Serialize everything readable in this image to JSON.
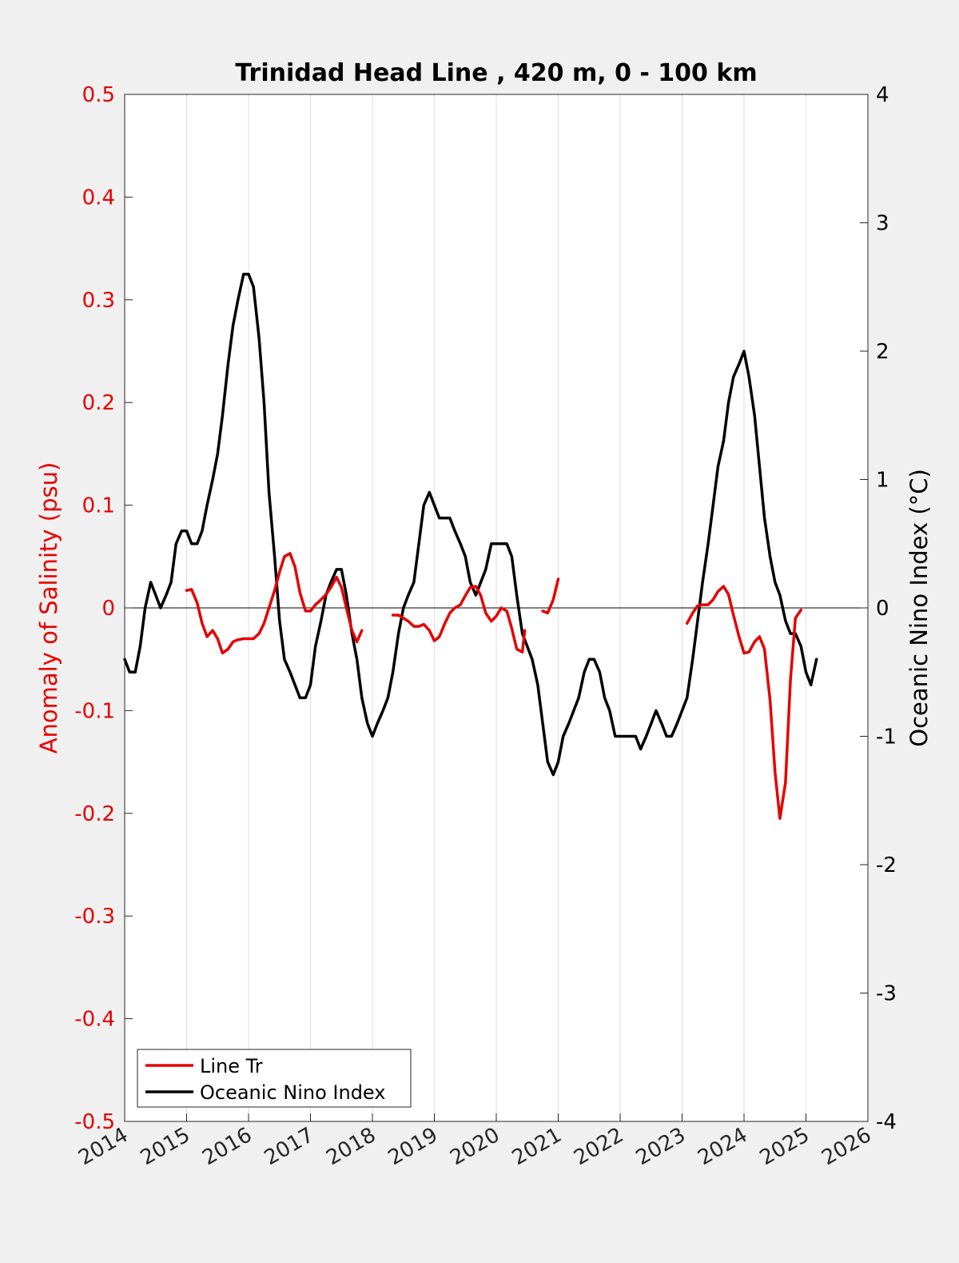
{
  "chart_data": {
    "type": "line",
    "title": "Trinidad Head Line , 420 m, 0 - 100 km",
    "xlabel": "",
    "ylabel_left": "Anomaly of Salinity (psu)",
    "ylabel_right": "Oceanic Nino Index (°C)",
    "xlim": [
      2014,
      2026
    ],
    "ylim_left": [
      -0.5,
      0.5
    ],
    "ylim_right": [
      -4,
      4
    ],
    "xticks": [
      "2014",
      "2015",
      "2016",
      "2017",
      "2018",
      "2019",
      "2020",
      "2021",
      "2022",
      "2023",
      "2024",
      "2025",
      "2026"
    ],
    "yticks_left": [
      "0.5",
      "0.4",
      "0.3",
      "0.2",
      "0.1",
      "0",
      "-0.1",
      "-0.2",
      "-0.3",
      "-0.4",
      "-0.5"
    ],
    "yticks_right": [
      "4",
      "3",
      "2",
      "1",
      "0",
      "-1",
      "-2",
      "-3",
      "-4"
    ],
    "grid": "vertical x-gridlines",
    "legend_position": "bottom-left",
    "colors": {
      "salinity": "#e60000",
      "oni": "#000000",
      "left_axis": "#e60000",
      "right_axis": "#000000"
    },
    "series": [
      {
        "name": "Line Tr",
        "axis": "left",
        "segments": [
          [
            [
              2015.0,
              0.017
            ],
            [
              2015.08,
              0.018
            ],
            [
              2015.17,
              0.005
            ],
            [
              2015.25,
              -0.015
            ],
            [
              2015.33,
              -0.028
            ],
            [
              2015.42,
              -0.022
            ],
            [
              2015.5,
              -0.03
            ],
            [
              2015.58,
              -0.044
            ],
            [
              2015.67,
              -0.04
            ],
            [
              2015.75,
              -0.033
            ],
            [
              2015.83,
              -0.031
            ],
            [
              2015.92,
              -0.03
            ],
            [
              2016.0,
              -0.03
            ],
            [
              2016.08,
              -0.03
            ],
            [
              2016.17,
              -0.025
            ],
            [
              2016.25,
              -0.015
            ],
            [
              2016.33,
              0.0
            ],
            [
              2016.42,
              0.017
            ],
            [
              2016.5,
              0.035
            ],
            [
              2016.58,
              0.05
            ],
            [
              2016.67,
              0.053
            ],
            [
              2016.75,
              0.04
            ],
            [
              2016.83,
              0.015
            ],
            [
              2016.92,
              -0.003
            ],
            [
              2017.0,
              -0.003
            ],
            [
              2017.08,
              0.003
            ],
            [
              2017.17,
              0.008
            ],
            [
              2017.25,
              0.013
            ],
            [
              2017.33,
              0.02
            ],
            [
              2017.42,
              0.03
            ],
            [
              2017.5,
              0.02
            ],
            [
              2017.58,
              0.0
            ],
            [
              2017.67,
              -0.022
            ],
            [
              2017.75,
              -0.033
            ],
            [
              2017.83,
              -0.022
            ]
          ],
          [
            [
              2018.33,
              -0.007
            ],
            [
              2018.42,
              -0.007
            ],
            [
              2018.5,
              -0.01
            ],
            [
              2018.58,
              -0.013
            ],
            [
              2018.67,
              -0.018
            ],
            [
              2018.75,
              -0.018
            ],
            [
              2018.83,
              -0.016
            ],
            [
              2018.92,
              -0.022
            ],
            [
              2019.0,
              -0.032
            ],
            [
              2019.08,
              -0.028
            ],
            [
              2019.17,
              -0.015
            ],
            [
              2019.25,
              -0.005
            ],
            [
              2019.33,
              0.0
            ],
            [
              2019.42,
              0.003
            ],
            [
              2019.5,
              0.012
            ],
            [
              2019.58,
              0.02
            ],
            [
              2019.67,
              0.021
            ],
            [
              2019.75,
              0.012
            ],
            [
              2019.83,
              -0.005
            ],
            [
              2019.92,
              -0.013
            ],
            [
              2020.0,
              -0.008
            ],
            [
              2020.08,
              0.0
            ],
            [
              2020.17,
              -0.003
            ],
            [
              2020.25,
              -0.02
            ],
            [
              2020.33,
              -0.04
            ],
            [
              2020.42,
              -0.043
            ],
            [
              2020.46,
              -0.022
            ]
          ],
          [
            [
              2020.75,
              -0.003
            ],
            [
              2020.83,
              -0.005
            ],
            [
              2020.92,
              0.008
            ],
            [
              2021.0,
              0.028
            ]
          ],
          [
            [
              2023.08,
              -0.015
            ],
            [
              2023.17,
              -0.005
            ],
            [
              2023.25,
              0.002
            ],
            [
              2023.33,
              0.003
            ],
            [
              2023.42,
              0.003
            ],
            [
              2023.5,
              0.008
            ],
            [
              2023.58,
              0.016
            ],
            [
              2023.67,
              0.021
            ],
            [
              2023.75,
              0.013
            ],
            [
              2023.83,
              -0.007
            ],
            [
              2023.92,
              -0.028
            ],
            [
              2024.0,
              -0.044
            ],
            [
              2024.08,
              -0.043
            ],
            [
              2024.17,
              -0.033
            ],
            [
              2024.25,
              -0.028
            ],
            [
              2024.33,
              -0.04
            ],
            [
              2024.42,
              -0.09
            ],
            [
              2024.5,
              -0.16
            ],
            [
              2024.58,
              -0.205
            ],
            [
              2024.67,
              -0.17
            ],
            [
              2024.75,
              -0.07
            ],
            [
              2024.83,
              -0.01
            ],
            [
              2024.92,
              -0.002
            ]
          ]
        ]
      },
      {
        "name": "Oceanic Nino Index",
        "axis": "right",
        "points": [
          [
            2014.0,
            -0.4
          ],
          [
            2014.08,
            -0.5
          ],
          [
            2014.17,
            -0.5
          ],
          [
            2014.25,
            -0.3
          ],
          [
            2014.33,
            0.0
          ],
          [
            2014.42,
            0.2
          ],
          [
            2014.5,
            0.1
          ],
          [
            2014.58,
            0.0
          ],
          [
            2014.67,
            0.1
          ],
          [
            2014.75,
            0.2
          ],
          [
            2014.83,
            0.5
          ],
          [
            2014.92,
            0.6
          ],
          [
            2015.0,
            0.6
          ],
          [
            2015.08,
            0.5
          ],
          [
            2015.17,
            0.5
          ],
          [
            2015.25,
            0.6
          ],
          [
            2015.33,
            0.8
          ],
          [
            2015.42,
            1.0
          ],
          [
            2015.5,
            1.2
          ],
          [
            2015.58,
            1.5
          ],
          [
            2015.67,
            1.9
          ],
          [
            2015.75,
            2.2
          ],
          [
            2015.83,
            2.4
          ],
          [
            2015.92,
            2.6
          ],
          [
            2016.0,
            2.6
          ],
          [
            2016.08,
            2.5
          ],
          [
            2016.17,
            2.1
          ],
          [
            2016.25,
            1.6
          ],
          [
            2016.33,
            0.9
          ],
          [
            2016.42,
            0.4
          ],
          [
            2016.5,
            -0.1
          ],
          [
            2016.58,
            -0.4
          ],
          [
            2016.67,
            -0.5
          ],
          [
            2016.75,
            -0.6
          ],
          [
            2016.83,
            -0.7
          ],
          [
            2016.92,
            -0.7
          ],
          [
            2017.0,
            -0.6
          ],
          [
            2017.08,
            -0.3
          ],
          [
            2017.17,
            -0.1
          ],
          [
            2017.25,
            0.1
          ],
          [
            2017.33,
            0.2
          ],
          [
            2017.42,
            0.3
          ],
          [
            2017.5,
            0.3
          ],
          [
            2017.58,
            0.1
          ],
          [
            2017.67,
            -0.2
          ],
          [
            2017.75,
            -0.4
          ],
          [
            2017.83,
            -0.7
          ],
          [
            2017.92,
            -0.9
          ],
          [
            2018.0,
            -1.0
          ],
          [
            2018.08,
            -0.9
          ],
          [
            2018.17,
            -0.8
          ],
          [
            2018.25,
            -0.7
          ],
          [
            2018.33,
            -0.5
          ],
          [
            2018.42,
            -0.2
          ],
          [
            2018.5,
            0.0
          ],
          [
            2018.58,
            0.1
          ],
          [
            2018.67,
            0.2
          ],
          [
            2018.75,
            0.5
          ],
          [
            2018.83,
            0.8
          ],
          [
            2018.92,
            0.9
          ],
          [
            2019.0,
            0.8
          ],
          [
            2019.08,
            0.7
          ],
          [
            2019.17,
            0.7
          ],
          [
            2019.25,
            0.7
          ],
          [
            2019.33,
            0.6
          ],
          [
            2019.42,
            0.5
          ],
          [
            2019.5,
            0.4
          ],
          [
            2019.58,
            0.2
          ],
          [
            2019.67,
            0.1
          ],
          [
            2019.75,
            0.2
          ],
          [
            2019.83,
            0.3
          ],
          [
            2019.92,
            0.5
          ],
          [
            2020.0,
            0.5
          ],
          [
            2020.08,
            0.5
          ],
          [
            2020.17,
            0.5
          ],
          [
            2020.25,
            0.4
          ],
          [
            2020.33,
            0.1
          ],
          [
            2020.42,
            -0.2
          ],
          [
            2020.5,
            -0.3
          ],
          [
            2020.58,
            -0.4
          ],
          [
            2020.67,
            -0.6
          ],
          [
            2020.75,
            -0.9
          ],
          [
            2020.83,
            -1.2
          ],
          [
            2020.92,
            -1.3
          ],
          [
            2021.0,
            -1.2
          ],
          [
            2021.08,
            -1.0
          ],
          [
            2021.17,
            -0.9
          ],
          [
            2021.25,
            -0.8
          ],
          [
            2021.33,
            -0.7
          ],
          [
            2021.42,
            -0.5
          ],
          [
            2021.5,
            -0.4
          ],
          [
            2021.58,
            -0.4
          ],
          [
            2021.67,
            -0.5
          ],
          [
            2021.75,
            -0.7
          ],
          [
            2021.83,
            -0.8
          ],
          [
            2021.92,
            -1.0
          ],
          [
            2022.0,
            -1.0
          ],
          [
            2022.08,
            -1.0
          ],
          [
            2022.17,
            -1.0
          ],
          [
            2022.25,
            -1.0
          ],
          [
            2022.33,
            -1.1
          ],
          [
            2022.42,
            -1.0
          ],
          [
            2022.5,
            -0.9
          ],
          [
            2022.58,
            -0.8
          ],
          [
            2022.67,
            -0.9
          ],
          [
            2022.75,
            -1.0
          ],
          [
            2022.83,
            -1.0
          ],
          [
            2022.92,
            -0.9
          ],
          [
            2023.0,
            -0.8
          ],
          [
            2023.08,
            -0.7
          ],
          [
            2023.17,
            -0.4
          ],
          [
            2023.25,
            -0.1
          ],
          [
            2023.33,
            0.2
          ],
          [
            2023.42,
            0.5
          ],
          [
            2023.5,
            0.8
          ],
          [
            2023.58,
            1.1
          ],
          [
            2023.67,
            1.3
          ],
          [
            2023.75,
            1.6
          ],
          [
            2023.83,
            1.8
          ],
          [
            2023.92,
            1.9
          ],
          [
            2024.0,
            2.0
          ],
          [
            2024.08,
            1.8
          ],
          [
            2024.17,
            1.5
          ],
          [
            2024.25,
            1.1
          ],
          [
            2024.33,
            0.7
          ],
          [
            2024.42,
            0.4
          ],
          [
            2024.5,
            0.2
          ],
          [
            2024.58,
            0.1
          ],
          [
            2024.67,
            -0.1
          ],
          [
            2024.75,
            -0.2
          ],
          [
            2024.83,
            -0.2
          ],
          [
            2024.92,
            -0.3
          ],
          [
            2025.0,
            -0.5
          ],
          [
            2025.08,
            -0.6
          ],
          [
            2025.17,
            -0.4
          ]
        ]
      }
    ]
  }
}
